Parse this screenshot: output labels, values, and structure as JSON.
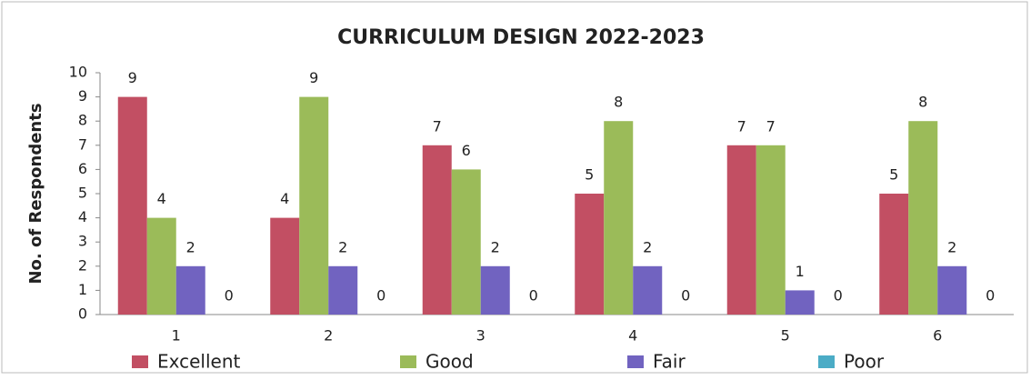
{
  "chart_data": {
    "type": "bar",
    "title": "CURRICULUM DESIGN 2022-2023",
    "y_label": "No. of Respondents",
    "categories": [
      "1",
      "2",
      "3",
      "4",
      "5",
      "6"
    ],
    "series": [
      {
        "name": "Excellent",
        "color": "#c24f63",
        "values": [
          9,
          4,
          7,
          5,
          7,
          5
        ]
      },
      {
        "name": "Good",
        "color": "#9bbb59",
        "values": [
          4,
          9,
          6,
          8,
          7,
          8
        ]
      },
      {
        "name": "Fair",
        "color": "#7163c0",
        "values": [
          2,
          2,
          2,
          2,
          1,
          2
        ]
      },
      {
        "name": "Poor",
        "color": "#4bacc6",
        "values": [
          0,
          0,
          0,
          0,
          0,
          0
        ]
      }
    ],
    "ylim": [
      0,
      10
    ],
    "yticks": [
      0,
      1,
      2,
      3,
      4,
      5,
      6,
      7,
      8,
      9,
      10
    ],
    "grid": false,
    "legend": "bottom"
  }
}
